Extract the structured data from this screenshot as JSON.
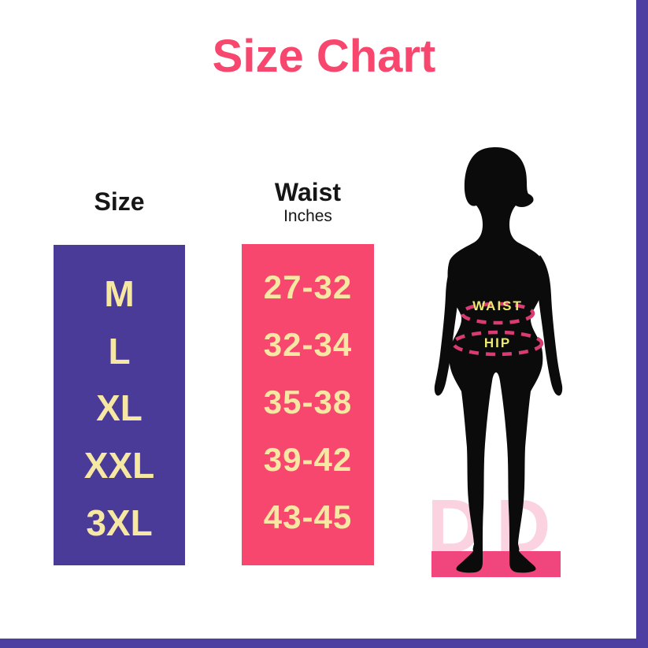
{
  "title": "Size Chart",
  "colors": {
    "pink": "#F7476E",
    "purple": "#4A3B98",
    "border_purple": "#4D3EA1",
    "cream": "#F6E8A3",
    "label_yellow": "#EDE96F",
    "dash_pink": "#D93B72",
    "platform_pink": "#F0467D",
    "watermark_pink": "#FBD2DF",
    "silhouette_black": "#0B0B0B",
    "heading_black": "#161616",
    "background": "#FFFFFF"
  },
  "size_column": {
    "header": "Size",
    "values": [
      "M",
      "L",
      "XL",
      "XXL",
      "3XL"
    ]
  },
  "waist_column": {
    "header": "Waist",
    "subheader": "Inches",
    "values": [
      "27-32",
      "32-34",
      "35-38",
      "39-42",
      "43-45"
    ]
  },
  "figure": {
    "waist_label": "WAIST",
    "hip_label": "HIP",
    "watermark": "DD"
  },
  "chart_data": {
    "type": "table",
    "title": "Size Chart",
    "columns": [
      "Size",
      "Waist (Inches)"
    ],
    "rows": [
      [
        "M",
        "27-32"
      ],
      [
        "L",
        "32-34"
      ],
      [
        "XL",
        "35-38"
      ],
      [
        "XXL",
        "39-42"
      ],
      [
        "3XL",
        "43-45"
      ]
    ]
  }
}
